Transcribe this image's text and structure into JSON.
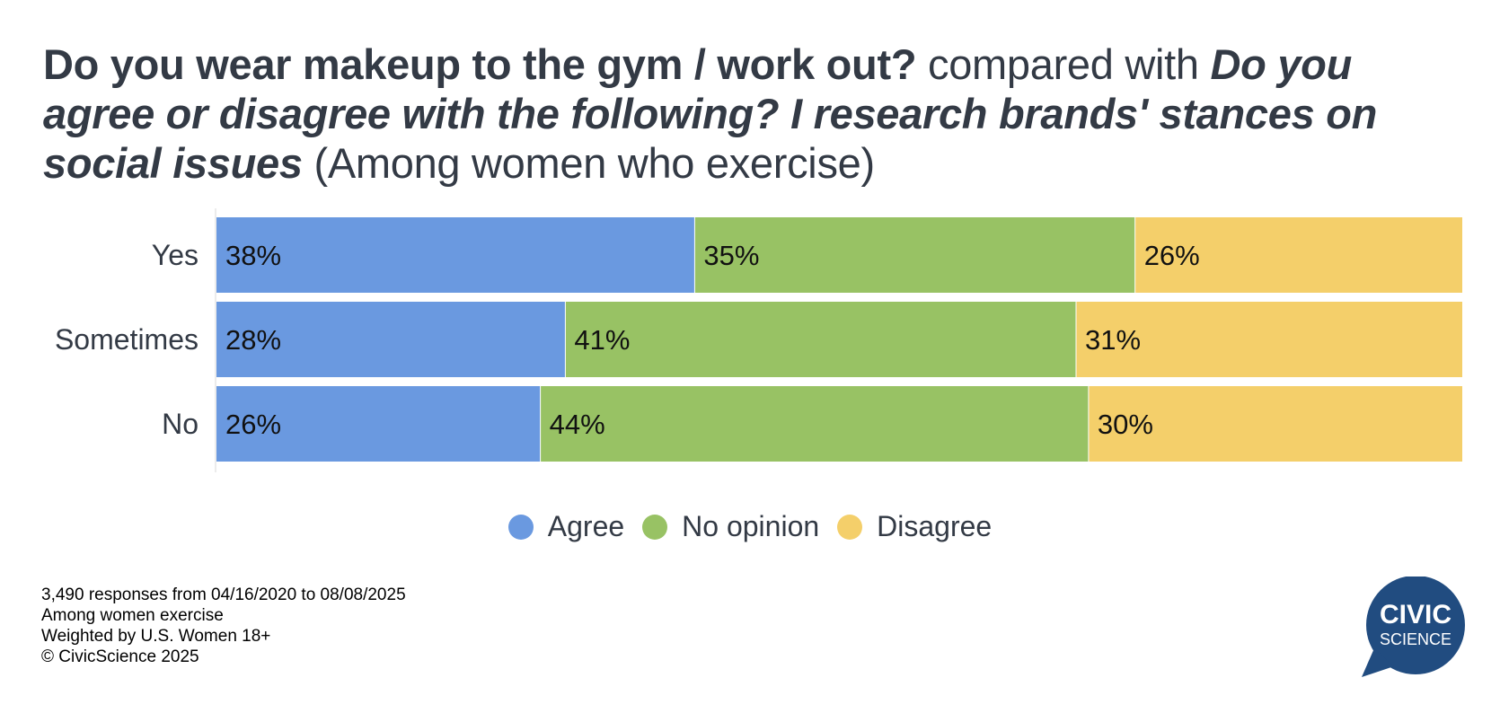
{
  "title": {
    "question1": "Do you wear makeup to the gym / work out?",
    "connector": "compared with",
    "question2": "Do you agree or disagree with the following? I research brands' stances on social issues",
    "subgroup": "(Among women who exercise)"
  },
  "chart_data": {
    "type": "bar",
    "orientation": "horizontal",
    "stacked": true,
    "normalized": true,
    "categories": [
      "Yes",
      "Sometimes",
      "No"
    ],
    "series": [
      {
        "name": "Agree",
        "values": [
          38,
          28,
          26
        ],
        "labels": [
          "38%",
          "28%",
          "26%"
        ],
        "color": "#6a99e0"
      },
      {
        "name": "No opinion",
        "values": [
          35,
          41,
          44
        ],
        "labels": [
          "35%",
          "41%",
          "44%"
        ],
        "color": "#98c264"
      },
      {
        "name": "Disagree",
        "values": [
          26,
          31,
          30
        ],
        "labels": [
          "26%",
          "31%",
          "30%"
        ],
        "color": "#f4cf6a"
      }
    ],
    "legend_position": "bottom-center",
    "grid": false
  },
  "footer": {
    "line1": "3,490 responses from 04/16/2020 to 08/08/2025",
    "line2": "Among women exercise",
    "line3": "Weighted by U.S. Women 18+",
    "line4": "© CivicScience 2025"
  },
  "logo": {
    "line1": "CIVIC",
    "line2": "SCIENCE",
    "color": "#214c80"
  }
}
